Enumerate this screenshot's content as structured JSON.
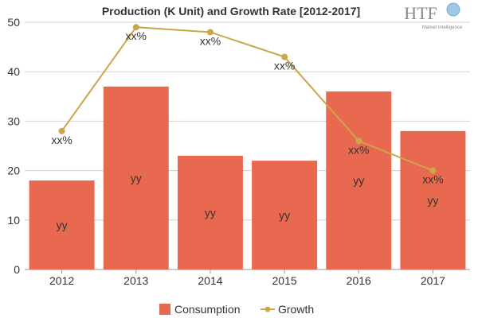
{
  "chart_data": {
    "type": "bar",
    "title": "Production (K Unit) and Growth Rate [2012-2017]",
    "categories": [
      "2012",
      "2013",
      "2014",
      "2015",
      "2016",
      "2017"
    ],
    "ylim": [
      0,
      50
    ],
    "yticks": [
      0,
      10,
      20,
      30,
      40,
      50
    ],
    "grid": true,
    "legend_position": "bottom",
    "series": [
      {
        "name": "Consumption",
        "type": "bar",
        "color": "#e8694f",
        "values": [
          18,
          37,
          23,
          22,
          36,
          28
        ],
        "labels": [
          "yy",
          "yy",
          "yy",
          "yy",
          "yy",
          "yy"
        ]
      },
      {
        "name": "Growth",
        "type": "line",
        "color": "#c9a74a",
        "values": [
          28,
          49,
          48,
          43,
          26,
          20
        ],
        "labels": [
          "xx%",
          "xx%",
          "xx%",
          "xx%",
          "xx%",
          "xx%"
        ]
      }
    ]
  },
  "logo": {
    "text": "HTF",
    "subtext": "Market Intelligence"
  }
}
